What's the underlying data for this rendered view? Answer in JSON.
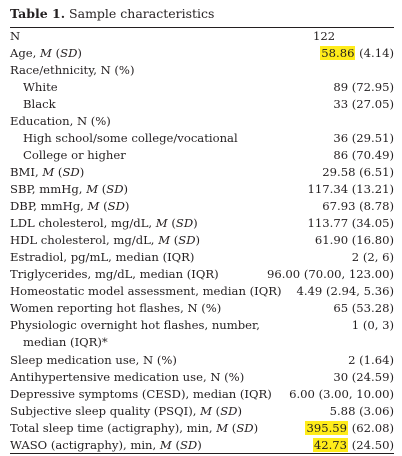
{
  "caption": {
    "label": "Table 1.",
    "title": "Sample characteristics"
  },
  "rows": [
    {
      "label": "N",
      "value": "122"
    },
    {
      "label_pre": "Age, ",
      "label_it": "M",
      "label_mid": " (",
      "label_it2": "SD",
      "label_post": ")",
      "value_hl": "58.86",
      "value_rest": " (4.14)"
    },
    {
      "label": "Race/ethnicity, N (%)"
    },
    {
      "label": "White",
      "value": "89 (72.95)"
    },
    {
      "label": "Black",
      "value": "33 (27.05)"
    },
    {
      "label": "Education, N (%)"
    },
    {
      "label": "High school/some college/vocational",
      "value": "36 (29.51)"
    },
    {
      "label": "College or higher",
      "value": "86 (70.49)"
    },
    {
      "label_pre": "BMI, ",
      "label_it": "M",
      "label_mid": " (",
      "label_it2": "SD",
      "label_post": ")",
      "value": "29.58 (6.51)"
    },
    {
      "label_pre": "SBP, mmHg, ",
      "label_it": "M",
      "label_mid": " (",
      "label_it2": "SD",
      "label_post": ")",
      "value": "117.34 (13.21)"
    },
    {
      "label_pre": "DBP, mmHg, ",
      "label_it": "M",
      "label_mid": " (",
      "label_it2": "SD",
      "label_post": ")",
      "value": "67.93 (8.78)"
    },
    {
      "label_pre": "LDL cholesterol, mg/dL, ",
      "label_it": "M",
      "label_mid": " (",
      "label_it2": "SD",
      "label_post": ")",
      "value": "113.77 (34.05)"
    },
    {
      "label_pre": "HDL cholesterol, mg/dL, ",
      "label_it": "M",
      "label_mid": " (",
      "label_it2": "SD",
      "label_post": ")",
      "value": "61.90 (16.80)"
    },
    {
      "label": "Estradiol, pg/mL, median (IQR)",
      "value": "2 (2, 6)"
    },
    {
      "label": "Triglycerides, mg/dL, median (IQR)",
      "value": "96.00 (70.00, 123.00)"
    },
    {
      "label": "Homeostatic model assessment, median (IQR)",
      "value": "4.49 (2.94, 5.36)"
    },
    {
      "label": "Women reporting hot flashes, N (%)",
      "value": "65 (53.28)"
    },
    {
      "label": "Physiologic overnight hot flashes, number,",
      "value": "1 (0, 3)"
    },
    {
      "label": "median (IQR)*"
    },
    {
      "label": "Sleep medication use, N (%)",
      "value": "2 (1.64)"
    },
    {
      "label": "Antihypertensive medication use, N (%)",
      "value": "30 (24.59)"
    },
    {
      "label": "Depressive symptoms (CESD), median (IQR)",
      "value": "6.00 (3.00, 10.00)"
    },
    {
      "label_pre": "Subjective sleep quality (PSQI), ",
      "label_it": "M",
      "label_mid": " (",
      "label_it2": "SD",
      "label_post": ")",
      "value": "5.88 (3.06)"
    },
    {
      "label_pre": "Total sleep time (actigraphy), min, ",
      "label_it": "M",
      "label_mid": " (",
      "label_it2": "SD",
      "label_post": ")",
      "value_hl": "395.59",
      "value_rest": " (62.08)"
    },
    {
      "label_pre": "WASO (actigraphy), min, ",
      "label_it": "M",
      "label_mid": " (",
      "label_it2": "SD",
      "label_post": ")",
      "value_hl": "42.73",
      "value_rest": " (24.50)"
    }
  ]
}
